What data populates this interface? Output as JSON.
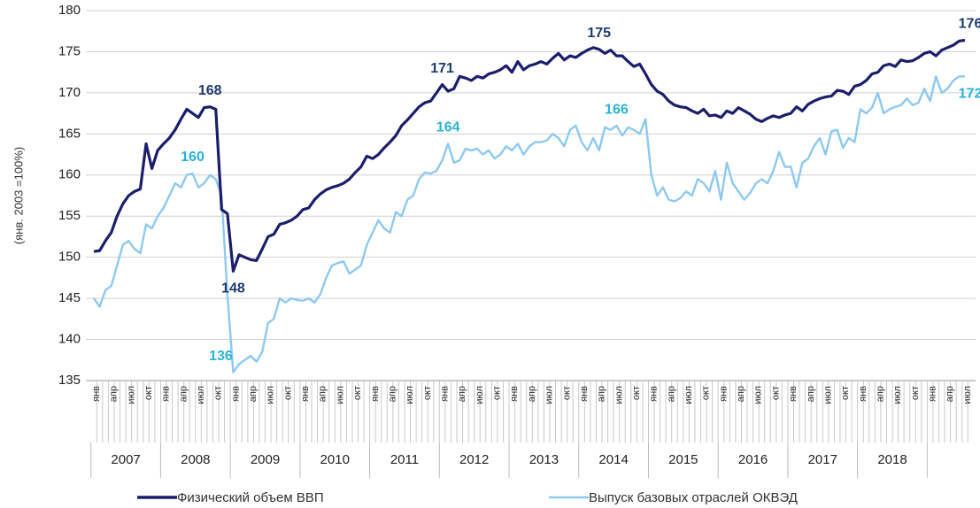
{
  "chart_data": {
    "type": "line",
    "y_label": "(янв. 2003 =100%)",
    "categories": [
      "янв",
      null,
      null,
      "апр",
      null,
      null,
      "июл",
      null,
      null,
      "окт",
      null,
      null,
      "янв",
      null,
      null,
      "апр",
      null,
      null,
      "июл",
      null,
      null,
      "окт",
      null,
      null,
      "янв",
      null,
      null,
      "апр",
      null,
      null,
      "июл",
      null,
      null,
      "окт",
      null,
      null,
      "янв",
      null,
      null,
      "апр",
      null,
      null,
      "июл",
      null,
      null,
      "окт",
      null,
      null,
      "янв",
      null,
      null,
      "апр",
      null,
      null,
      "июл",
      null,
      null,
      "окт",
      null,
      null,
      "янв",
      null,
      null,
      "апр",
      null,
      null,
      "июл",
      null,
      null,
      "окт",
      null,
      null,
      "янв",
      null,
      null,
      "апр",
      null,
      null,
      "июл",
      null,
      null,
      "окт",
      null,
      null,
      "янв",
      null,
      null,
      "апр",
      null,
      null,
      "июл",
      null,
      null,
      "окт",
      null,
      null,
      "янв",
      null,
      null,
      "апр",
      null,
      null,
      "июл",
      null,
      null,
      "окт",
      null,
      null,
      "янв",
      null,
      null,
      "апр",
      null,
      null,
      "июл",
      null,
      null,
      "окт",
      null,
      null,
      "янв",
      null,
      null,
      "апр",
      null,
      null,
      "июл",
      null,
      null,
      "окт",
      null,
      null,
      "янв",
      null,
      null,
      "апр",
      null,
      null,
      "июл",
      null,
      null,
      "окт",
      null,
      null,
      "янв",
      null,
      null,
      "апр",
      null,
      null,
      "июл"
    ],
    "year_groups": [
      "2007",
      "2008",
      "2009",
      "2010",
      "2011",
      "2012",
      "2013",
      "2014",
      "2015",
      "2016",
      "2017",
      "2018"
    ],
    "ylim": [
      135,
      180
    ],
    "yticks": [
      135,
      140,
      145,
      150,
      155,
      160,
      165,
      170,
      175,
      180
    ],
    "grid": true,
    "legend": "bottom",
    "series": [
      {
        "name": "Физический объем ВВП",
        "color": "#1b1f6b",
        "label_color": "#1f3a6e",
        "values": [
          150.7,
          150.8,
          152,
          153,
          155,
          156.5,
          157.5,
          158,
          158.3,
          163.8,
          160.8,
          163,
          163.8,
          164.5,
          165.5,
          166.8,
          168,
          167.5,
          167,
          168.2,
          168.3,
          168,
          155.8,
          155.3,
          148.3,
          150.3,
          150,
          149.7,
          149.6,
          151,
          152.5,
          152.8,
          154,
          154.2,
          154.5,
          155,
          155.8,
          156,
          157,
          157.7,
          158.2,
          158.5,
          158.7,
          159,
          159.5,
          160.3,
          161,
          162.3,
          162,
          162.5,
          163.3,
          164,
          164.8,
          166,
          166.7,
          167.5,
          168.3,
          168.8,
          169,
          170,
          171,
          170.2,
          170.5,
          172,
          171.8,
          171.5,
          172,
          171.8,
          172.3,
          172.5,
          172.8,
          173.3,
          172.5,
          173.8,
          172.8,
          173.3,
          173.5,
          173.8,
          173.5,
          174.2,
          174.8,
          174,
          174.5,
          174.3,
          174.8,
          175.2,
          175.5,
          175.3,
          174.8,
          175.2,
          174.5,
          174.5,
          173.8,
          173.2,
          173.5,
          172.3,
          171,
          170.2,
          169.8,
          169,
          168.5,
          168.3,
          168.2,
          167.8,
          167.5,
          168,
          167.2,
          167.3,
          167,
          167.8,
          167.5,
          168.2,
          167.8,
          167.4,
          166.8,
          166.5,
          166.9,
          167.2,
          167,
          167.3,
          167.5,
          168.3,
          167.8,
          168.6,
          169,
          169.3,
          169.5,
          169.6,
          170.3,
          170.2,
          169.8,
          170.8,
          171,
          171.5,
          172.3,
          172.5,
          173.3,
          173.5,
          173.2,
          174,
          173.8,
          173.9,
          174.3,
          174.8,
          175,
          174.5,
          175.2,
          175.5,
          175.8,
          176.3,
          176.4
        ],
        "value_labels": [
          null,
          null,
          null,
          null,
          null,
          null,
          null,
          null,
          null,
          null,
          null,
          null,
          null,
          null,
          null,
          null,
          null,
          null,
          null,
          null,
          "168",
          null,
          null,
          null,
          "148",
          null,
          null,
          null,
          null,
          null,
          null,
          null,
          null,
          null,
          null,
          null,
          null,
          null,
          null,
          null,
          null,
          null,
          null,
          null,
          null,
          null,
          null,
          null,
          null,
          null,
          null,
          null,
          null,
          null,
          null,
          null,
          null,
          null,
          null,
          null,
          "171",
          null,
          null,
          null,
          null,
          null,
          null,
          null,
          null,
          null,
          null,
          null,
          null,
          null,
          null,
          null,
          null,
          null,
          null,
          null,
          null,
          null,
          null,
          null,
          null,
          null,
          null,
          "175",
          null,
          null,
          null,
          null,
          null,
          null,
          null,
          null,
          null,
          null,
          null,
          null,
          null,
          null,
          null,
          null,
          null,
          null,
          null,
          null,
          null,
          null,
          null,
          null,
          null,
          null,
          null,
          null,
          null,
          null,
          null,
          null,
          null,
          null,
          null,
          null,
          null,
          null,
          null,
          null,
          null,
          null,
          null,
          null,
          null,
          null,
          null,
          null,
          null,
          null,
          null,
          null,
          null,
          null,
          null,
          null,
          null,
          null,
          null,
          null,
          null,
          null,
          "176"
        ]
      },
      {
        "name": "Выпуск базовых отраслей ОКВЭД",
        "color": "#8ec9f0",
        "label_color": "#2ab3d3",
        "values": [
          145,
          144,
          146,
          146.5,
          149,
          151.5,
          152,
          151,
          150.5,
          154,
          153.5,
          155,
          156,
          157.5,
          159,
          158.5,
          160,
          160.2,
          158.5,
          159,
          160,
          159.5,
          157.5,
          145.5,
          136,
          137,
          137.5,
          138,
          137.3,
          138.5,
          142,
          142.5,
          145,
          144.5,
          145,
          144.8,
          144.7,
          145,
          144.5,
          145.5,
          147.5,
          149,
          149.3,
          149.5,
          148,
          148.5,
          149,
          151.5,
          153,
          154.5,
          153.5,
          153,
          155.5,
          155,
          157,
          157.5,
          159.5,
          160.3,
          160.2,
          160.5,
          161.8,
          163.8,
          161.5,
          161.8,
          163.2,
          163,
          163.2,
          162.5,
          163,
          162,
          162.5,
          163.5,
          163,
          163.8,
          162.5,
          163.5,
          164,
          164,
          164.2,
          165,
          164.5,
          163.5,
          165.5,
          166,
          164,
          163,
          164.5,
          163,
          165.8,
          165.5,
          166,
          164.8,
          165.8,
          165.5,
          165,
          166.8,
          160,
          157.5,
          158.5,
          157,
          156.8,
          157.2,
          158,
          157.5,
          159.5,
          159,
          158,
          160.5,
          157,
          161.5,
          159,
          158,
          157,
          157.8,
          159,
          159.5,
          159,
          160.5,
          162.8,
          161,
          161,
          158.5,
          161.5,
          162,
          163.5,
          164.5,
          162.5,
          165.3,
          165.5,
          163.3,
          164.5,
          164,
          168,
          167.5,
          168.2,
          170,
          167.5,
          168,
          168.3,
          168.5,
          169.3,
          168.5,
          168.8,
          170.5,
          169,
          172,
          170,
          170.5,
          171.5,
          172,
          172
        ],
        "value_labels": [
          null,
          null,
          null,
          null,
          null,
          null,
          null,
          null,
          null,
          null,
          null,
          null,
          null,
          null,
          null,
          null,
          null,
          "160",
          null,
          null,
          null,
          null,
          null,
          null,
          "136",
          null,
          null,
          null,
          null,
          null,
          null,
          null,
          null,
          null,
          null,
          null,
          null,
          null,
          null,
          null,
          null,
          null,
          null,
          null,
          null,
          null,
          null,
          null,
          null,
          null,
          null,
          null,
          null,
          null,
          null,
          null,
          null,
          null,
          null,
          null,
          null,
          "164",
          null,
          null,
          null,
          null,
          null,
          null,
          null,
          null,
          null,
          null,
          null,
          null,
          null,
          null,
          null,
          null,
          null,
          null,
          null,
          null,
          null,
          null,
          null,
          null,
          null,
          null,
          null,
          null,
          "166",
          null,
          null,
          null,
          null,
          null,
          null,
          null,
          null,
          null,
          null,
          null,
          null,
          null,
          null,
          null,
          null,
          null,
          null,
          null,
          null,
          null,
          null,
          null,
          null,
          null,
          null,
          null,
          null,
          null,
          null,
          null,
          null,
          null,
          null,
          null,
          null,
          null,
          null,
          null,
          null,
          null,
          null,
          null,
          null,
          null,
          null,
          null,
          null,
          null,
          null,
          null,
          null,
          null,
          null,
          null,
          null,
          null,
          null,
          null,
          "172"
        ]
      }
    ]
  }
}
